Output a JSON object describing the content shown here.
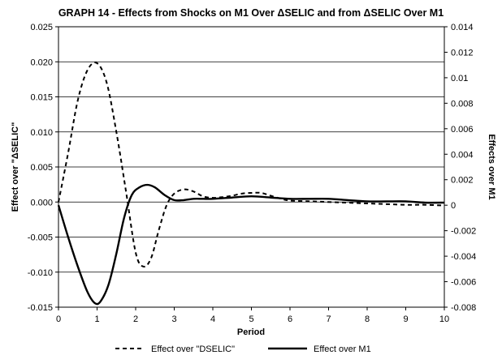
{
  "chart_data": {
    "type": "line",
    "title": "GRAPH 14 - Effects from Shocks on M1 Over ΔSELIC and from ΔSELIC Over M1",
    "xlabel": "Period",
    "ylabel_left": "Effect over \"ΔSELIC\"",
    "ylabel_right": "Effects over M1",
    "xlim": [
      0,
      10
    ],
    "ylim_left": [
      -0.015,
      0.025
    ],
    "ylim_right": [
      -0.008,
      0.014
    ],
    "x_ticks": [
      "0",
      "1",
      "2",
      "3",
      "4",
      "5",
      "6",
      "7",
      "8",
      "9",
      "10"
    ],
    "y_ticks_left": [
      "0.025",
      "0.020",
      "0.015",
      "0.010",
      "0.005",
      "0.000",
      "-0.005",
      "-0.010",
      "-0.015"
    ],
    "y_ticks_right": [
      "0.014",
      "0.012",
      "0.01",
      "0.008",
      "0.006",
      "0.004",
      "0.002",
      "0",
      "-0.002",
      "-0.004",
      "-0.006",
      "-0.008"
    ],
    "grid": "horizontal",
    "legend_position": "bottom",
    "series": [
      {
        "name": "Effect over \"DSELIC\"",
        "axis": "left",
        "style": "dashed",
        "color": "#000000",
        "points": [
          [
            0,
            0.0
          ],
          [
            0.25,
            0.007
          ],
          [
            0.5,
            0.0145
          ],
          [
            0.75,
            0.0188
          ],
          [
            1.0,
            0.0198
          ],
          [
            1.25,
            0.017
          ],
          [
            1.5,
            0.01
          ],
          [
            1.75,
            0.0015
          ],
          [
            2.0,
            -0.0072
          ],
          [
            2.2,
            -0.0092
          ],
          [
            2.4,
            -0.008
          ],
          [
            2.6,
            -0.004
          ],
          [
            2.8,
            -0.0005
          ],
          [
            3.0,
            0.0012
          ],
          [
            3.25,
            0.0018
          ],
          [
            3.5,
            0.0015
          ],
          [
            3.75,
            0.0008
          ],
          [
            4.0,
            0.0006
          ],
          [
            4.25,
            0.0007
          ],
          [
            4.5,
            0.0009
          ],
          [
            4.75,
            0.0012
          ],
          [
            5.0,
            0.0013
          ],
          [
            5.25,
            0.0013
          ],
          [
            5.5,
            0.0009
          ],
          [
            5.75,
            0.0005
          ],
          [
            6.0,
            0.0002
          ],
          [
            6.5,
            0.0001
          ],
          [
            7.0,
            0.0
          ],
          [
            7.5,
            -0.0001
          ],
          [
            8.0,
            -0.0002
          ],
          [
            8.5,
            -0.0003
          ],
          [
            9.0,
            -0.0004
          ],
          [
            9.5,
            -0.0004
          ],
          [
            10.0,
            -0.0005
          ]
        ]
      },
      {
        "name": "Effect over M1",
        "axis": "right",
        "style": "solid",
        "color": "#000000",
        "points": [
          [
            0,
            0.0
          ],
          [
            0.25,
            -0.0025
          ],
          [
            0.5,
            -0.0048
          ],
          [
            0.75,
            -0.0068
          ],
          [
            0.95,
            -0.0077
          ],
          [
            1.1,
            -0.0075
          ],
          [
            1.3,
            -0.0062
          ],
          [
            1.5,
            -0.0038
          ],
          [
            1.7,
            -0.001
          ],
          [
            1.9,
            0.0008
          ],
          [
            2.1,
            0.0014
          ],
          [
            2.3,
            0.0016
          ],
          [
            2.5,
            0.0014
          ],
          [
            2.75,
            0.0008
          ],
          [
            3.0,
            0.0004
          ],
          [
            3.25,
            0.0004
          ],
          [
            3.5,
            0.0005
          ],
          [
            3.75,
            0.0005
          ],
          [
            4.0,
            0.0005
          ],
          [
            4.5,
            0.0006
          ],
          [
            5.0,
            0.0007
          ],
          [
            5.5,
            0.0006
          ],
          [
            6.0,
            0.0005
          ],
          [
            6.5,
            0.0005
          ],
          [
            7.0,
            0.0005
          ],
          [
            7.5,
            0.0004
          ],
          [
            8.0,
            0.0003
          ],
          [
            8.5,
            0.0003
          ],
          [
            9.0,
            0.0003
          ],
          [
            9.5,
            0.0002
          ],
          [
            10.0,
            0.0002
          ]
        ]
      }
    ]
  }
}
